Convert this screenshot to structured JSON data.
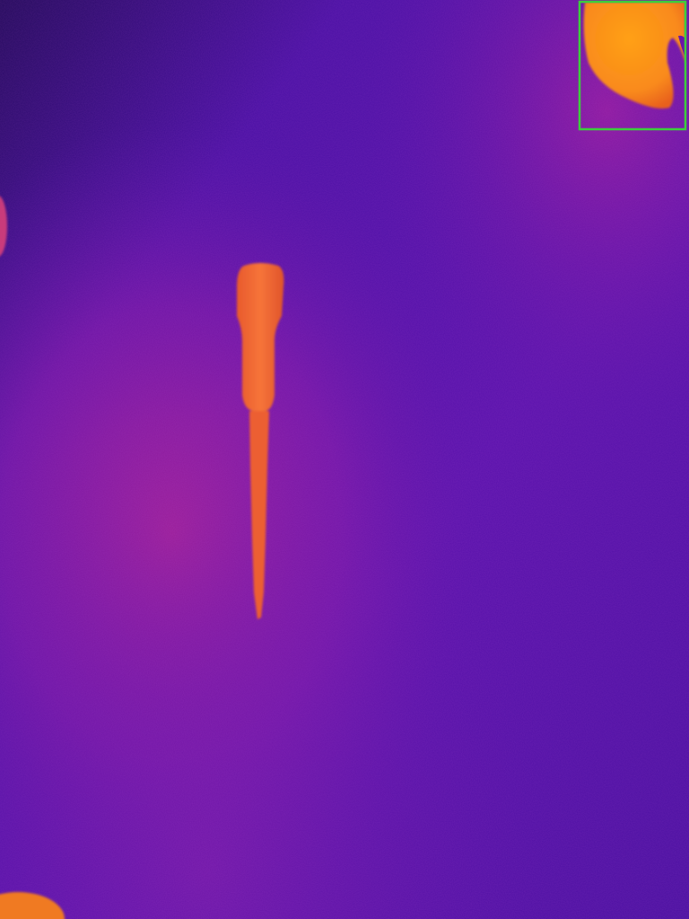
{
  "image": {
    "kind": "thermal-infrared-photo",
    "palette": {
      "cold": "#2a0a6e",
      "cool": "#4a10a8",
      "warm_bg": "#8a1aa8",
      "hot_bg": "#b02090",
      "object": "#f06a2e",
      "object_hot": "#ff9a1a"
    },
    "objects": [
      {
        "label": "screwdriver",
        "highlighted": false
      },
      {
        "label": "hot-object-corner",
        "highlighted": true
      },
      {
        "label": "warm-blob-left-edge",
        "highlighted": false
      },
      {
        "label": "hot-blob-bottom-left",
        "highlighted": false
      }
    ],
    "highlight_box_color": "#3ccf3c"
  }
}
